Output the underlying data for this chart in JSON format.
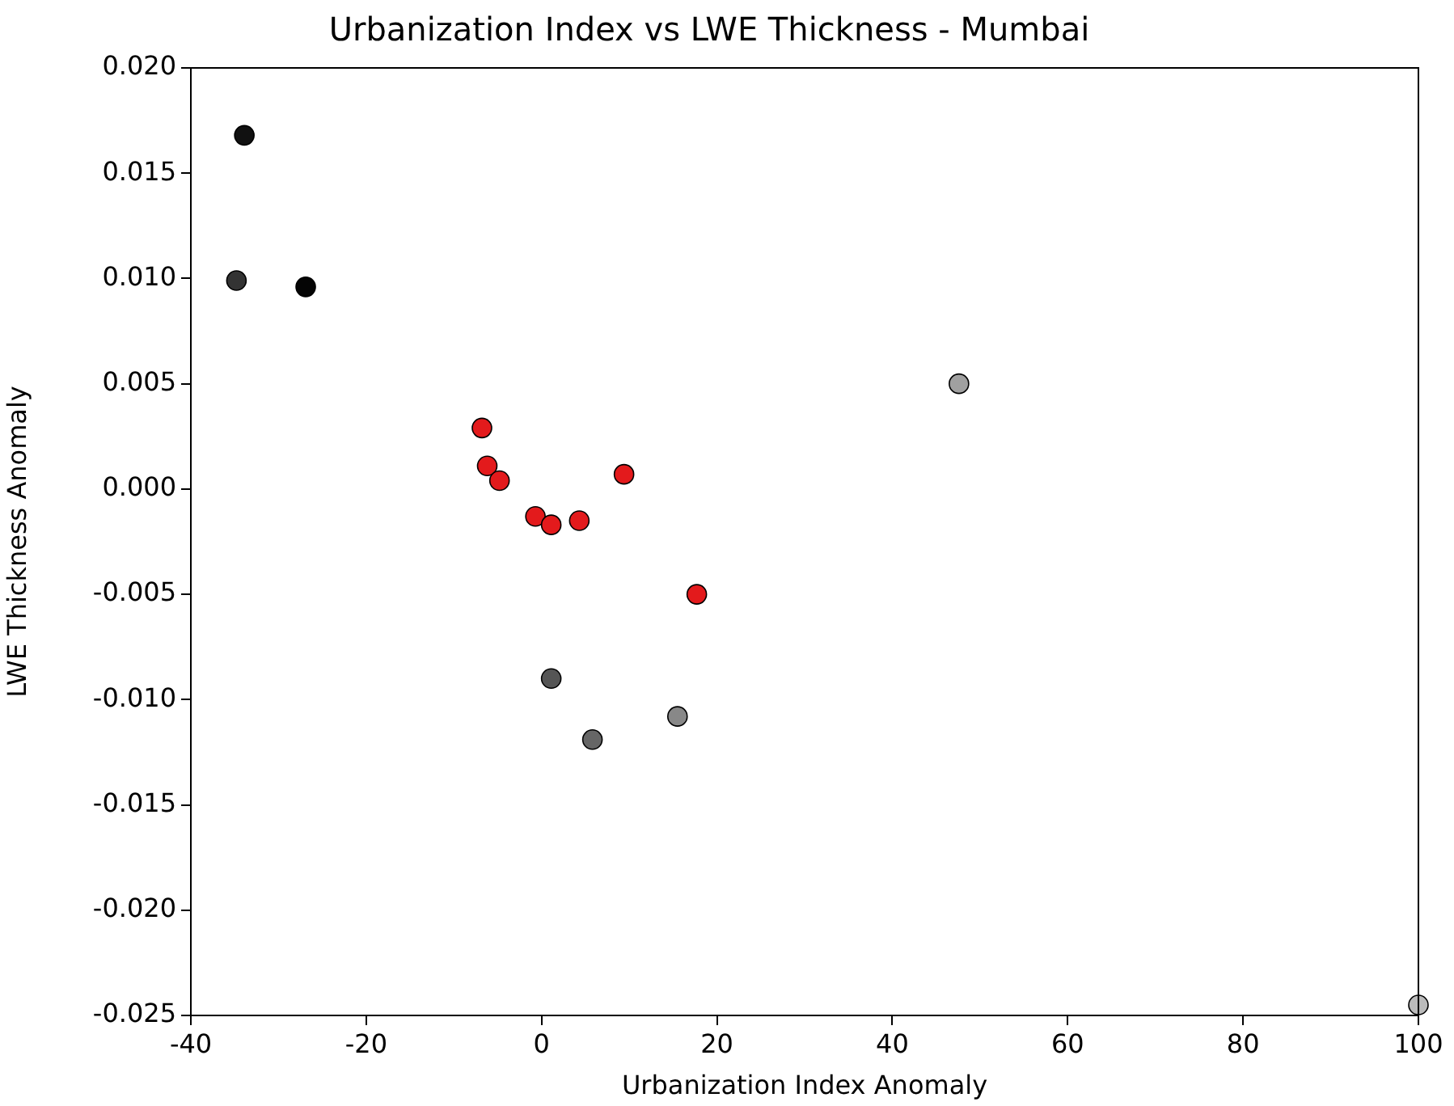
{
  "chart_data": {
    "type": "scatter",
    "title": "Urbanization Index vs LWE Thickness - Mumbai",
    "xlabel": "Urbanization Index Anomaly",
    "ylabel": "LWE Thickness Anomaly",
    "x": [
      -33.9,
      -34.8,
      -26.9,
      47.6,
      -6.8,
      -6.2,
      -4.8,
      -0.7,
      1.1,
      4.3,
      9.4,
      17.7,
      1.1,
      5.8,
      15.5,
      100
    ],
    "values": [
      0.0168,
      0.0099,
      0.0096,
      0.005,
      0.0029,
      0.0011,
      0.0004,
      -0.0013,
      -0.0017,
      -0.0015,
      0.0007,
      -0.005,
      -0.009,
      -0.0119,
      -0.0108,
      -0.0245
    ],
    "colors": [
      "#111111",
      "#333333",
      "#050505",
      "#a0a0a0",
      "#e31a1c",
      "#e31a1c",
      "#e31a1c",
      "#e31a1c",
      "#e31a1c",
      "#e31a1c",
      "#e31a1c",
      "#e31a1c",
      "#555555",
      "#666666",
      "#888888",
      "#bbbbbb"
    ],
    "marker": "circle",
    "grid": false,
    "legend": false,
    "xlim": [
      -40,
      100
    ],
    "xticks": [
      -40,
      -20,
      0,
      20,
      40,
      60,
      80,
      100
    ],
    "ylim": [
      -0.025,
      0.02
    ],
    "yticks": [
      {
        "value": -0.025,
        "label": "-0.025"
      },
      {
        "value": -0.02,
        "label": "-0.020"
      },
      {
        "value": -0.015,
        "label": "-0.015"
      },
      {
        "value": -0.01,
        "label": "-0.010"
      },
      {
        "value": -0.005,
        "label": "-0.005"
      },
      {
        "value": 0,
        "label": "0.000"
      },
      {
        "value": 0.005,
        "label": "0.005"
      },
      {
        "value": 0.01,
        "label": "0.010"
      },
      {
        "value": 0.015,
        "label": "0.015"
      },
      {
        "value": 0.02,
        "label": "0.020"
      }
    ]
  }
}
